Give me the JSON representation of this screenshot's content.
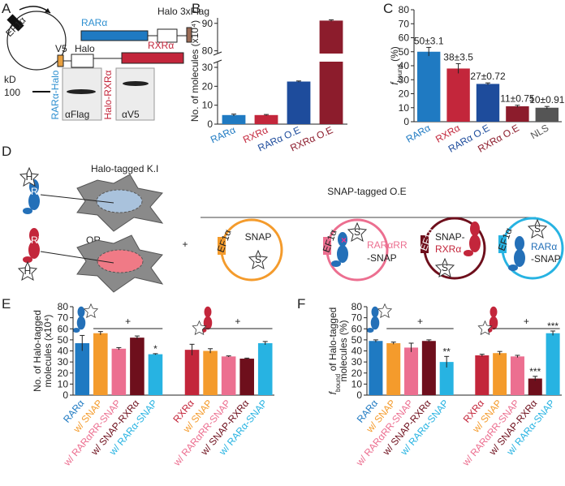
{
  "panels": [
    "A",
    "B",
    "C",
    "D",
    "E",
    "F"
  ],
  "panel_a": {
    "promoter": "EF1α",
    "rar": "RARα",
    "halo": "Halo",
    "flag": "3xFlag",
    "v5": "V5",
    "rxr": "RXRα",
    "kd": "kD",
    "marker": "100",
    "blot1": "RARα-Halo",
    "blot2": "Halo-RXRα",
    "ab1": "αFlag",
    "ab2": "αV5"
  },
  "panel_d": {
    "knockin": "Halo-tagged K.I",
    "rar": "RAR",
    "rxr": "RXR",
    "halo": "H",
    "or": "OR,",
    "plus": "+",
    "overexp": "SNAP-tagged O.E",
    "snap": "SNAP",
    "snap_tag": "S",
    "promoter": "EF1α",
    "rar_rr": "RARαRR",
    "snap_suffix": "-SNAP",
    "snap_prefix": "SNAP-",
    "rxra": "RXRα",
    "rara": "RARα"
  },
  "chart_data": [
    {
      "type": "bar",
      "ylabel": [
        [
          {
            "text": "No. of molecules (x10⁴)"
          }
        ]
      ],
      "categories": [
        "RARα",
        "RXRα",
        "RARα O.E",
        "RXRα O.E"
      ],
      "values": [
        4.8,
        4.8,
        22.5,
        91
      ],
      "errors": [
        0.5,
        0.3,
        0.3,
        0.3
      ],
      "colors": [
        "#1f7ac2",
        "#c3263b",
        "#1e4c9c",
        "#8c1c2c"
      ],
      "ylim": [
        0,
        92
      ],
      "ybreak": [
        33,
        79
      ],
      "yticks": [
        0,
        10,
        20,
        30,
        80,
        90
      ]
    },
    {
      "type": "bar",
      "ylabel": [
        [
          {
            "text": "f",
            "italic": true
          },
          {
            "text": "bound",
            "sub": true
          },
          {
            "text": " (%)"
          }
        ]
      ],
      "categories": [
        "RARα",
        "RXRα",
        "RARα O.E",
        "RXRα O.E",
        "NLS"
      ],
      "values": [
        50,
        38,
        27,
        11,
        10
      ],
      "errors": [
        3.1,
        3.5,
        0.72,
        0.75,
        0.91
      ],
      "value_labels": [
        "50±3.1",
        "38±3.5",
        "27±0.72",
        "11±0.75",
        "10±0.91"
      ],
      "colors": [
        "#1f7ac2",
        "#c3263b",
        "#1e4c9c",
        "#8c1c2c",
        "#555555"
      ],
      "ylim": [
        0,
        80
      ],
      "yticks": [
        0,
        10,
        20,
        30,
        40,
        50,
        60,
        70,
        80
      ]
    },
    {
      "type": "bar",
      "ylabel": [
        [
          {
            "text": "No. of Halo-tagged"
          }
        ],
        [
          {
            "text": "molecules (x10⁴)"
          }
        ]
      ],
      "categories": [
        "RARα",
        "w/ SNAP",
        "w/ RARαRR-SNAP",
        "w/ SNAP-RXRα",
        "w/ RARα-SNAP",
        null,
        "RXRα",
        "w/ SNAP",
        "w/ RARαRR-SNAP",
        "w/ SNAP-RXRα",
        "w/ RARα-SNAP"
      ],
      "values": [
        47,
        56,
        42,
        52,
        37,
        null,
        41,
        40,
        35,
        33,
        47
      ],
      "errors": [
        7,
        1.5,
        1,
        1.5,
        0.5,
        null,
        5,
        2,
        0.5,
        0.5,
        1.5
      ],
      "significance": [
        null,
        null,
        null,
        null,
        "*",
        null,
        null,
        null,
        null,
        null,
        null
      ],
      "colors": [
        "#1f7ac2",
        "#f49b2c",
        "#ec6f90",
        "#6e0f1c",
        "#27b3e2",
        null,
        "#c3263b",
        "#f49b2c",
        "#ec6f90",
        "#6e0f1c",
        "#27b3e2"
      ],
      "group_label": "+",
      "ylim": [
        0,
        80
      ],
      "yticks": [
        0,
        10,
        20,
        30,
        40,
        50,
        60,
        70,
        80
      ]
    },
    {
      "type": "bar",
      "ylabel": [
        [
          {
            "text": "f",
            "italic": true
          },
          {
            "text": "bound",
            "sub": true
          },
          {
            "text": " of Halo-tagged"
          }
        ],
        [
          {
            "text": "molecules (%)"
          }
        ]
      ],
      "categories": [
        "RARα",
        "w/ SNAP",
        "w/ RARαRR-SNAP",
        "w/ SNAP-RXRα",
        "w/ RARα-SNAP",
        null,
        "RXRα",
        "w/ SNAP",
        "w/ RARαRR-SNAP",
        "w/ SNAP-RXRα",
        "w/ RARα-SNAP"
      ],
      "values": [
        49,
        47,
        43,
        49,
        30,
        null,
        36,
        38,
        35,
        15,
        56
      ],
      "errors": [
        1,
        1,
        4,
        1,
        5,
        null,
        1,
        1.5,
        1,
        2,
        2
      ],
      "significance": [
        null,
        null,
        null,
        null,
        "**",
        null,
        null,
        null,
        null,
        "***",
        "***"
      ],
      "colors": [
        "#1f7ac2",
        "#f49b2c",
        "#ec6f90",
        "#6e0f1c",
        "#27b3e2",
        null,
        "#c3263b",
        "#f49b2c",
        "#ec6f90",
        "#6e0f1c",
        "#27b3e2"
      ],
      "group_label": "+",
      "ylim": [
        0,
        80
      ],
      "yticks": [
        0,
        10,
        20,
        30,
        40,
        50,
        60,
        70,
        80
      ]
    }
  ]
}
